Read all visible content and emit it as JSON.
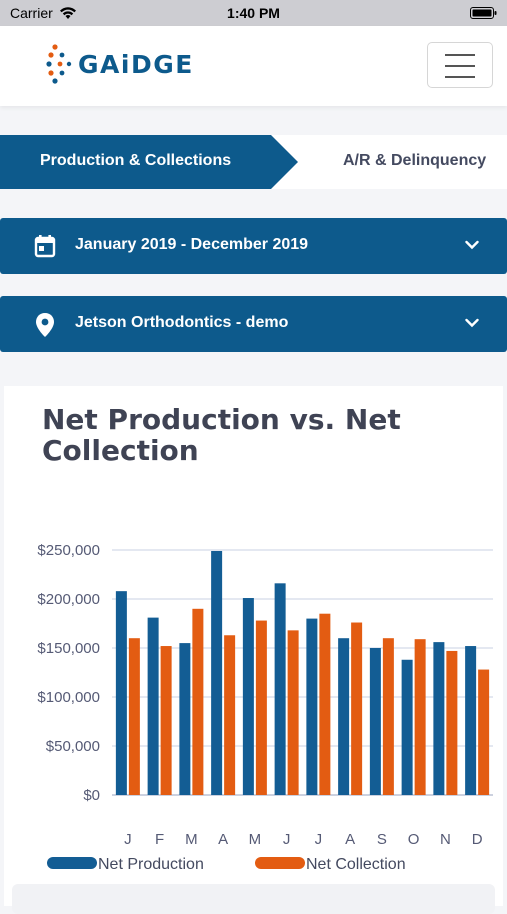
{
  "status": {
    "carrier": "Carrier",
    "time": "1:40 PM"
  },
  "header": {
    "logo_text": "GAiDGE"
  },
  "tabs": {
    "active": "Production & Collections",
    "inactive": "A/R & Delinquency"
  },
  "filters": {
    "date_range": "January 2019 - December 2019",
    "location": "Jetson Orthodontics - demo"
  },
  "chart": {
    "title": "Net Production vs. Net Collection"
  },
  "colors": {
    "primary": "#0d5a8c",
    "production": "#135d94",
    "collection": "#e35c12"
  },
  "chart_data": {
    "type": "bar",
    "title": "Net Production vs. Net Collection",
    "categories": [
      "J",
      "F",
      "M",
      "A",
      "M",
      "J",
      "J",
      "A",
      "S",
      "O",
      "N",
      "D"
    ],
    "series": [
      {
        "name": "Net Production",
        "values": [
          208000,
          181000,
          155000,
          249000,
          201000,
          216000,
          180000,
          160000,
          150000,
          138000,
          156000,
          152000
        ]
      },
      {
        "name": "Net Collection",
        "values": [
          160000,
          152000,
          190000,
          163000,
          178000,
          168000,
          185000,
          176000,
          160000,
          159000,
          147000,
          128000
        ]
      }
    ],
    "ylim": [
      0,
      250000
    ],
    "yticks": [
      0,
      50000,
      100000,
      150000,
      200000,
      250000
    ],
    "ytick_labels": [
      "$0",
      "$50,000",
      "$100,000",
      "$150,000",
      "$200,000",
      "$250,000"
    ],
    "grid": true,
    "legend": "bottom"
  }
}
